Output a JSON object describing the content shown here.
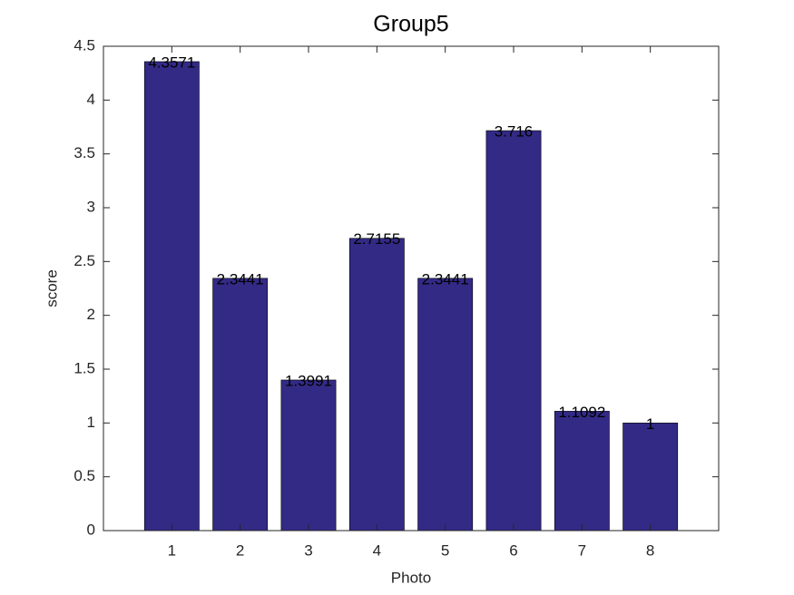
{
  "chart_data": {
    "type": "bar",
    "title": "Group5",
    "x_label": "Photo",
    "y_label": "score",
    "x": [
      1,
      2,
      3,
      4,
      5,
      6,
      7,
      8
    ],
    "values": [
      4.3571,
      2.3441,
      1.3991,
      2.7155,
      2.3441,
      3.716,
      1.1092,
      1
    ],
    "color": "#332a86",
    "xlim": [
      0,
      9
    ],
    "xticks": [
      1,
      2,
      3,
      4,
      5,
      6,
      7,
      8
    ],
    "ylim": [
      0,
      4.5
    ],
    "yticks": [
      0,
      0.5,
      1,
      1.5,
      2,
      2.5,
      3,
      3.5,
      4,
      4.5
    ],
    "grid": false
  }
}
